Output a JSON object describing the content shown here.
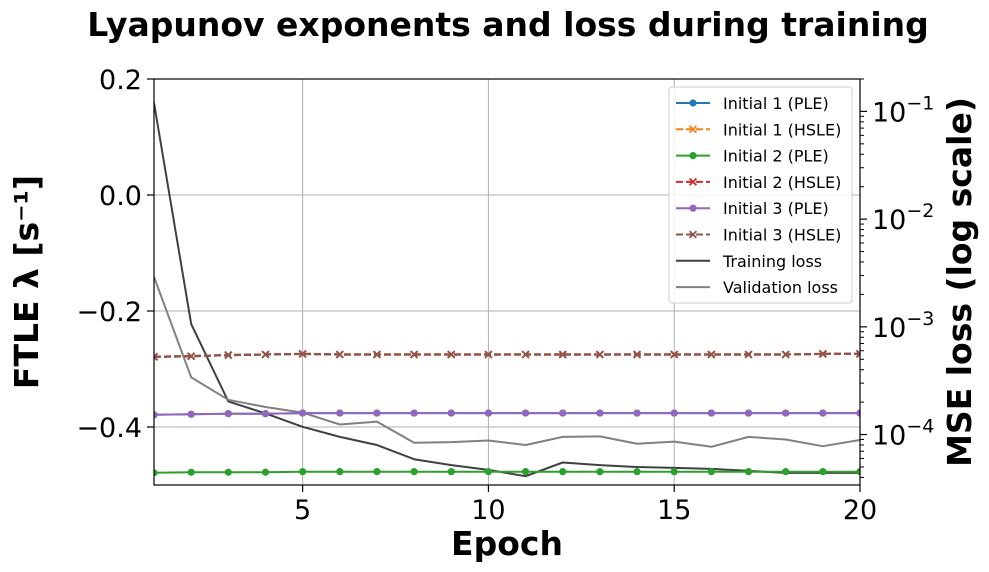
{
  "chart_data": {
    "type": "line",
    "title": "Lyapunov exponents and loss during training",
    "xlabel": "Epoch",
    "ylabel_left": "FTLE λ [s⁻¹]",
    "ylabel_right": "MSE loss (log scale)",
    "xlim": [
      1,
      20
    ],
    "ylim_left": [
      -0.5,
      0.2
    ],
    "ylim_right": [
      3.4e-05,
      0.2
    ],
    "right_scale": "log",
    "grid": true,
    "legend_position": "top-right",
    "x_ticks": [
      {
        "value": 5,
        "label": "5"
      },
      {
        "value": 10,
        "label": "10"
      },
      {
        "value": 15,
        "label": "15"
      },
      {
        "value": 20,
        "label": "20"
      }
    ],
    "left_ticks": [
      {
        "value": 0.2,
        "label": "0.2"
      },
      {
        "value": 0.0,
        "label": "0.0"
      },
      {
        "value": -0.2,
        "label": "−0.2"
      },
      {
        "value": -0.4,
        "label": "−0.4"
      }
    ],
    "right_ticks": [
      {
        "value": 0.1,
        "base": "10",
        "exp": "−1"
      },
      {
        "value": 0.01,
        "base": "10",
        "exp": "−2"
      },
      {
        "value": 0.001,
        "base": "10",
        "exp": "−3"
      },
      {
        "value": 0.0001,
        "base": "10",
        "exp": "−4"
      }
    ],
    "x": [
      1,
      2,
      3,
      4,
      5,
      6,
      7,
      8,
      9,
      10,
      11,
      12,
      13,
      14,
      15,
      16,
      17,
      18,
      19,
      20
    ],
    "series": [
      {
        "name": "Initial 1 (PLE)",
        "axis": "left",
        "color": "#1f77b4",
        "dash": "solid",
        "marker": "circle",
        "values": [
          -0.379,
          -0.378,
          -0.377,
          -0.377,
          -0.376,
          -0.376,
          -0.376,
          -0.376,
          -0.376,
          -0.376,
          -0.376,
          -0.376,
          -0.376,
          -0.376,
          -0.376,
          -0.376,
          -0.376,
          -0.376,
          -0.376,
          -0.376
        ]
      },
      {
        "name": "Initial 1 (HSLE)",
        "axis": "left",
        "color": "#ff7f0e",
        "dash": "dashed",
        "marker": "x",
        "values": [
          -0.279,
          -0.278,
          -0.276,
          -0.275,
          -0.274,
          -0.275,
          -0.275,
          -0.275,
          -0.275,
          -0.275,
          -0.275,
          -0.275,
          -0.275,
          -0.275,
          -0.275,
          -0.275,
          -0.275,
          -0.275,
          -0.274,
          -0.274
        ]
      },
      {
        "name": "Initial 2 (PLE)",
        "axis": "left",
        "color": "#2ca02c",
        "dash": "solid",
        "marker": "circle",
        "values": [
          -0.479,
          -0.478,
          -0.478,
          -0.478,
          -0.477,
          -0.477,
          -0.477,
          -0.477,
          -0.477,
          -0.477,
          -0.477,
          -0.477,
          -0.477,
          -0.477,
          -0.477,
          -0.477,
          -0.477,
          -0.477,
          -0.477,
          -0.477
        ]
      },
      {
        "name": "Initial 2 (HSLE)",
        "axis": "left",
        "color": "#d62728",
        "dash": "dashed",
        "marker": "x",
        "values": [
          -0.279,
          -0.278,
          -0.276,
          -0.275,
          -0.274,
          -0.275,
          -0.275,
          -0.275,
          -0.275,
          -0.275,
          -0.275,
          -0.275,
          -0.275,
          -0.275,
          -0.275,
          -0.275,
          -0.275,
          -0.275,
          -0.274,
          -0.274
        ]
      },
      {
        "name": "Initial 3 (PLE)",
        "axis": "left",
        "color": "#9467bd",
        "dash": "solid",
        "marker": "circle",
        "values": [
          -0.379,
          -0.378,
          -0.377,
          -0.377,
          -0.376,
          -0.376,
          -0.376,
          -0.376,
          -0.376,
          -0.376,
          -0.376,
          -0.376,
          -0.376,
          -0.376,
          -0.376,
          -0.376,
          -0.376,
          -0.376,
          -0.376,
          -0.376
        ]
      },
      {
        "name": "Initial 3 (HSLE)",
        "axis": "left",
        "color": "#8c564b",
        "dash": "dashed",
        "marker": "x",
        "values": [
          -0.279,
          -0.278,
          -0.276,
          -0.275,
          -0.274,
          -0.275,
          -0.275,
          -0.275,
          -0.275,
          -0.275,
          -0.275,
          -0.275,
          -0.275,
          -0.275,
          -0.275,
          -0.275,
          -0.275,
          -0.275,
          -0.274,
          -0.274
        ]
      },
      {
        "name": "Training loss",
        "axis": "right",
        "color": "#404040",
        "dash": "solid",
        "marker": "none",
        "values": [
          0.12,
          0.00106,
          0.000203,
          0.000157,
          0.000118,
          9.5e-05,
          8e-05,
          5.9e-05,
          5.2e-05,
          4.7e-05,
          4.1e-05,
          5.5e-05,
          5.2e-05,
          5e-05,
          4.9e-05,
          4.8e-05,
          4.6e-05,
          4.4e-05,
          4.4e-05,
          4.4e-05
        ]
      },
      {
        "name": "Validation loss",
        "axis": "right",
        "color": "#808080",
        "dash": "solid",
        "marker": "none",
        "values": [
          0.0029,
          0.00034,
          0.00021,
          0.00018,
          0.00016,
          0.000124,
          0.000132,
          8.4e-05,
          8.5e-05,
          8.8e-05,
          8e-05,
          9.5e-05,
          9.6e-05,
          8.2e-05,
          8.6e-05,
          7.7e-05,
          9.5e-05,
          9e-05,
          7.8e-05,
          8.9e-05
        ]
      }
    ]
  }
}
